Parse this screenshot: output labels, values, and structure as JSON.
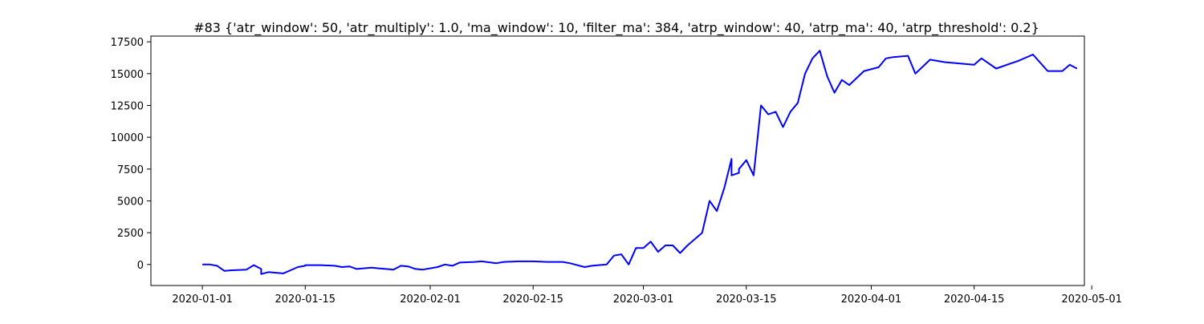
{
  "chart_data": {
    "type": "line",
    "title": "#83 {'atr_window': 50, 'atr_multiply': 1.0, 'ma_window': 10, 'filter_ma': 384, 'atrp_window': 40, 'atrp_ma': 40, 'atrp_threshold': 0.2}",
    "xlabel": "",
    "ylabel": "",
    "x_axis_type": "date",
    "xlim": [
      "2019-12-25",
      "2020-04-30"
    ],
    "ylim": [
      -1650,
      17950
    ],
    "x_ticks": [
      "2020-01-01",
      "2020-01-15",
      "2020-02-01",
      "2020-02-15",
      "2020-03-01",
      "2020-03-15",
      "2020-04-01",
      "2020-04-15",
      "2020-05-01"
    ],
    "y_ticks": [
      0,
      2500,
      5000,
      7500,
      10000,
      12500,
      15000,
      17500
    ],
    "y_tick_labels": [
      "0",
      "2500",
      "5000",
      "7500",
      "10000",
      "12500",
      "15000",
      "17500"
    ],
    "grid": false,
    "legend": "none",
    "line_color": "#0000ff",
    "series": [
      {
        "x": [
          "2020-01-01",
          "2020-01-02",
          "2020-01-03",
          "2020-01-04",
          "2020-01-05",
          "2020-01-07",
          "2020-01-08",
          "2020-01-09",
          "2020-01-09",
          "2020-01-10",
          "2020-01-11",
          "2020-01-12",
          "2020-01-13",
          "2020-01-14",
          "2020-01-15",
          "2020-01-15",
          "2020-01-17",
          "2020-01-19",
          "2020-01-20",
          "2020-01-21",
          "2020-01-22",
          "2020-01-24",
          "2020-01-25",
          "2020-01-26",
          "2020-01-27",
          "2020-01-28",
          "2020-01-29",
          "2020-01-30",
          "2020-01-31",
          "2020-02-02",
          "2020-02-03",
          "2020-02-04",
          "2020-02-05",
          "2020-02-07",
          "2020-02-08",
          "2020-02-10",
          "2020-02-11",
          "2020-02-13",
          "2020-02-15",
          "2020-02-17",
          "2020-02-19",
          "2020-02-20",
          "2020-02-22",
          "2020-02-23",
          "2020-02-25",
          "2020-02-26",
          "2020-02-27",
          "2020-02-28",
          "2020-02-29",
          "2020-03-01",
          "2020-03-02",
          "2020-03-03",
          "2020-03-04",
          "2020-03-05",
          "2020-03-06",
          "2020-03-07",
          "2020-03-08",
          "2020-03-09",
          "2020-03-10",
          "2020-03-11",
          "2020-03-12",
          "2020-03-13",
          "2020-03-13",
          "2020-03-14",
          "2020-03-14",
          "2020-03-15",
          "2020-03-16",
          "2020-03-17",
          "2020-03-18",
          "2020-03-19",
          "2020-03-20",
          "2020-03-21",
          "2020-03-22",
          "2020-03-23",
          "2020-03-24",
          "2020-03-25",
          "2020-03-26",
          "2020-03-27",
          "2020-03-28",
          "2020-03-29",
          "2020-03-31",
          "2020-04-02",
          "2020-04-03",
          "2020-04-04",
          "2020-04-06",
          "2020-04-07",
          "2020-04-09",
          "2020-04-11",
          "2020-04-13",
          "2020-04-15",
          "2020-04-16",
          "2020-04-18",
          "2020-04-20",
          "2020-04-21",
          "2020-04-23",
          "2020-04-25",
          "2020-04-27",
          "2020-04-28",
          "2020-04-29"
        ],
        "y": [
          0,
          0,
          -100,
          -500,
          -450,
          -400,
          -50,
          -350,
          -750,
          -600,
          -650,
          -700,
          -450,
          -200,
          -100,
          -50,
          -50,
          -100,
          -200,
          -150,
          -350,
          -250,
          -300,
          -350,
          -400,
          -100,
          -150,
          -350,
          -400,
          -200,
          0,
          -100,
          150,
          200,
          250,
          100,
          200,
          250,
          250,
          200,
          200,
          100,
          -200,
          -100,
          0,
          700,
          800,
          0,
          1300,
          1300,
          1800,
          1000,
          1500,
          1500,
          900,
          1500,
          2000,
          2500,
          5000,
          4200,
          6000,
          8300,
          7000,
          7200,
          7500,
          8200,
          7000,
          12500,
          11800,
          12000,
          10800,
          12000,
          12700,
          15000,
          16200,
          16800,
          14800,
          13500,
          14500,
          14100,
          15200,
          15500,
          16200,
          16300,
          16400,
          15000,
          16100,
          15900,
          15800,
          15700,
          16200,
          15400,
          15800,
          16000,
          16500,
          15200,
          15200,
          15700,
          15400
        ]
      }
    ]
  }
}
